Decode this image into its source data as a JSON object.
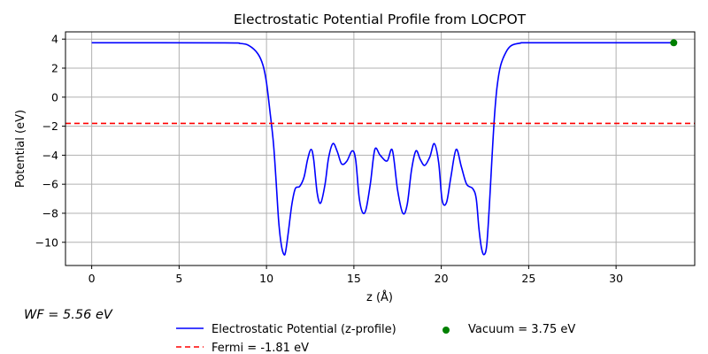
{
  "chart_data": {
    "type": "line",
    "title": "Electrostatic Potential Profile from LOCPOT",
    "xlabel": "z (Å)",
    "ylabel": "Potential (eV)",
    "xlim": [
      -1.5,
      34.5
    ],
    "ylim": [
      -11.6,
      4.5
    ],
    "xticks": [
      0,
      5,
      10,
      15,
      20,
      25,
      30
    ],
    "yticks": [
      -10,
      -8,
      -6,
      -4,
      -2,
      0,
      2,
      4
    ],
    "xtick_labels": [
      "0",
      "5",
      "10",
      "15",
      "20",
      "25",
      "30"
    ],
    "ytick_labels": [
      "−10",
      "−8",
      "−6",
      "−4",
      "−2",
      "0",
      "2",
      "4"
    ],
    "grid": true,
    "legend_position": "below",
    "series": [
      {
        "name": "Electrostatic Potential (z-profile)",
        "style": "solid",
        "color": "#0000ff",
        "x": [
          0,
          7.5,
          8.5,
          9.0,
          9.5,
          9.8,
          10.0,
          10.2,
          10.4,
          10.55,
          10.7,
          10.85,
          11.0,
          11.1,
          11.25,
          11.45,
          11.65,
          11.9,
          12.15,
          12.35,
          12.55,
          12.7,
          12.9,
          13.1,
          13.35,
          13.55,
          13.8,
          14.05,
          14.3,
          14.6,
          14.9,
          15.1,
          15.3,
          15.5,
          15.7,
          15.95,
          16.2,
          16.5,
          16.9,
          17.2,
          17.5,
          17.8,
          18.05,
          18.3,
          18.55,
          18.8,
          19.05,
          19.35,
          19.6,
          19.85,
          20.05,
          20.3,
          20.55,
          20.85,
          21.15,
          21.45,
          21.8,
          22.0,
          22.15,
          22.3,
          22.45,
          22.6,
          22.75,
          22.9,
          23.05,
          23.2,
          23.4,
          23.7,
          24.0,
          24.5,
          25.5,
          33.3
        ],
        "y": [
          3.75,
          3.74,
          3.7,
          3.55,
          3.0,
          2.2,
          1.0,
          -1.0,
          -3.2,
          -5.8,
          -8.6,
          -10.2,
          -10.85,
          -10.6,
          -9.3,
          -7.4,
          -6.3,
          -6.15,
          -5.5,
          -4.3,
          -3.6,
          -4.3,
          -6.6,
          -7.3,
          -6.0,
          -4.2,
          -3.2,
          -3.75,
          -4.6,
          -4.4,
          -3.7,
          -4.3,
          -6.9,
          -7.95,
          -7.7,
          -5.9,
          -3.6,
          -4.0,
          -4.4,
          -3.65,
          -6.4,
          -8.0,
          -7.4,
          -5.0,
          -3.7,
          -4.3,
          -4.7,
          -4.1,
          -3.2,
          -4.5,
          -7.1,
          -7.25,
          -5.5,
          -3.6,
          -4.8,
          -6.0,
          -6.3,
          -7.0,
          -9.0,
          -10.4,
          -10.85,
          -10.2,
          -7.5,
          -4.2,
          -1.2,
          0.8,
          2.2,
          3.1,
          3.55,
          3.72,
          3.75,
          3.75
        ]
      },
      {
        "name": "Fermi = -1.81 eV",
        "style": "dashed",
        "color": "#ff0000",
        "y_value": -1.81
      },
      {
        "name": "Vacuum = 3.75 eV",
        "style": "marker",
        "color": "#008000",
        "x": [
          33.3
        ],
        "y": [
          3.75
        ]
      }
    ],
    "annotations": [
      {
        "text": "WF = 5.56 eV"
      }
    ]
  }
}
